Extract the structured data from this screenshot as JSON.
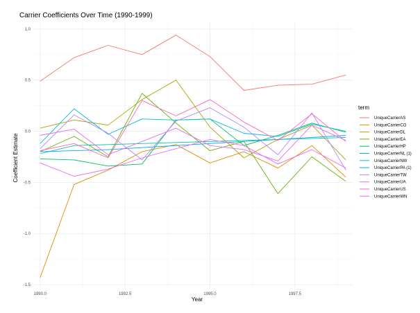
{
  "chart_data": {
    "type": "line",
    "title": "Carrier Coefficients Over Time (1990-1999)",
    "xlabel": "Year",
    "ylabel": "Coefficient Estimate",
    "xlim": [
      1989.8,
      1999.2
    ],
    "ylim": [
      -1.54,
      1.06
    ],
    "x_ticks": [
      1990,
      1992.5,
      1995,
      1997.5
    ],
    "x_tick_labels": [
      "1990.0",
      "1992.5",
      "1995.0",
      "1997.5"
    ],
    "y_ticks": [
      -1.5,
      -1.0,
      -0.5,
      0.0,
      0.5,
      1.0
    ],
    "y_tick_labels": [
      "-1.5",
      "-1.0",
      "-0.5",
      "0.0",
      "0.5",
      "1.0"
    ],
    "grid": true,
    "legend_title": "term",
    "legend_position": "right",
    "x": [
      1990,
      1991,
      1992,
      1993,
      1994,
      1995,
      1996,
      1997,
      1998,
      1999
    ],
    "series": [
      {
        "name": "UniqueCarrierAS",
        "color": "#F8766D",
        "values": [
          0.49,
          0.72,
          0.84,
          0.75,
          0.94,
          0.73,
          0.4,
          0.45,
          0.46,
          0.55
        ]
      },
      {
        "name": "UniqueCarrierCO",
        "color": "#DB8E00",
        "values": [
          -1.43,
          -0.52,
          -0.38,
          -0.2,
          -0.13,
          -0.31,
          -0.2,
          -0.36,
          -0.14,
          -0.45
        ]
      },
      {
        "name": "UniqueCarrierDL",
        "color": "#AEA200",
        "values": [
          0.03,
          0.11,
          0.06,
          0.31,
          0.5,
          0.04,
          -0.26,
          -0.08,
          0.06,
          -0.28
        ]
      },
      {
        "name": "UniqueCarrierEA",
        "color": "#64B200",
        "values": [
          -0.2,
          -0.05,
          -0.25,
          0.37,
          0.08,
          -0.19,
          -0.1,
          -0.61,
          -0.25,
          -0.49
        ]
      },
      {
        "name": "UniqueCarrierHP",
        "color": "#00BD5C",
        "values": [
          -0.27,
          -0.28,
          -0.34,
          -0.32,
          0.11,
          0.12,
          -0.14,
          -0.04,
          0.08,
          -0.01
        ]
      },
      {
        "name": "UniqueCarrierNL (1)",
        "color": "#00C1A7",
        "values": [
          -0.22,
          -0.14,
          -0.13,
          -0.12,
          -0.11,
          -0.1,
          -0.09,
          -0.08,
          -0.07,
          -0.06
        ]
      },
      {
        "name": "UniqueCarrierNW",
        "color": "#00BADE",
        "values": [
          -0.12,
          0.22,
          -0.03,
          0.12,
          0.11,
          0.12,
          -0.02,
          -0.05,
          0.07,
          0.0
        ]
      },
      {
        "name": "UniqueCarrierPA (1)",
        "color": "#00A6FF",
        "values": [
          -0.2,
          -0.19,
          -0.18,
          -0.16,
          -0.14,
          -0.12,
          -0.1,
          -0.08,
          -0.06,
          -0.04
        ]
      },
      {
        "name": "UniqueCarrierTW",
        "color": "#B385FF",
        "values": [
          -0.17,
          0.16,
          -0.02,
          -0.28,
          0.1,
          0.23,
          0.04,
          -0.23,
          0.18,
          -0.38
        ]
      },
      {
        "name": "UniqueCarrierUA",
        "color": "#EF67EB",
        "values": [
          -0.31,
          -0.44,
          -0.37,
          -0.26,
          -0.17,
          -0.08,
          -0.14,
          -0.32,
          -0.18,
          -0.36
        ]
      },
      {
        "name": "UniqueCarrierUS",
        "color": "#FF63B6",
        "values": [
          -0.19,
          -0.12,
          -0.26,
          0.3,
          0.15,
          0.31,
          0.09,
          -0.09,
          0.17,
          -0.1
        ]
      },
      {
        "name": "UniqueCarrierWN",
        "color": "#E76BF3",
        "values": [
          -0.04,
          0.02,
          -0.23,
          -0.1,
          0.03,
          -0.14,
          -0.18,
          -0.29,
          0.06,
          -0.09
        ]
      }
    ]
  }
}
